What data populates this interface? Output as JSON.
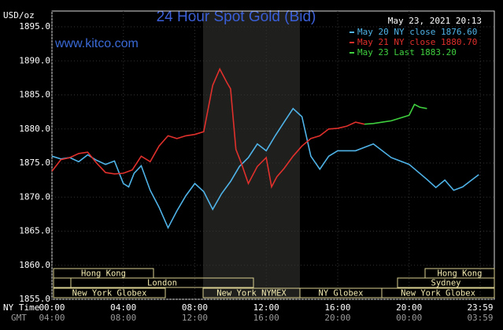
{
  "chart_data": {
    "type": "line",
    "title": "24 Hour Spot Gold (Bid)",
    "source": "www.kitco.com",
    "timestamp": "May 23, 2021 20:13",
    "y_label": "USD/oz",
    "x_label": "NY Time",
    "x2_label": "GMT",
    "legend": "top-right",
    "grid": true,
    "xlim": [
      0,
      23.98
    ],
    "xticks": [
      {
        "value": 0,
        "label": "00:00"
      },
      {
        "value": 4,
        "label": "04:00"
      },
      {
        "value": 8,
        "label": "08:00"
      },
      {
        "value": 12,
        "label": "12:00"
      },
      {
        "value": 16,
        "label": "16:00"
      },
      {
        "value": 20,
        "label": "20:00"
      },
      {
        "value": 23.98,
        "label": "23:59"
      }
    ],
    "gmt_labels": [
      "04:00",
      "08:00",
      "12:00",
      "16:00",
      "20:00",
      "00:00",
      "03:59"
    ],
    "ylim": [
      1855,
      1895
    ],
    "yticks": [
      {
        "value": 1855,
        "label": "1855.0"
      },
      {
        "value": 1860,
        "label": "1860.0"
      },
      {
        "value": 1865,
        "label": "1865.0"
      },
      {
        "value": 1870,
        "label": "1870.0"
      },
      {
        "value": 1875,
        "label": "1875.0"
      },
      {
        "value": 1880,
        "label": "1880.0"
      },
      {
        "value": 1885,
        "label": "1885.0"
      },
      {
        "value": 1890,
        "label": "1890.0"
      },
      {
        "value": 1895,
        "label": "1895.0"
      }
    ],
    "sessions": [
      "Hong Kong",
      "London",
      "New York NYMEX",
      "NY Globex",
      "New York Globex",
      "Hong Kong",
      "Sydney",
      "New York Globex"
    ],
    "series": [
      {
        "name": "May 20 NY close 1876.60",
        "color": "#4fb3e8",
        "x": [
          0,
          0.5,
          1,
          1.5,
          2,
          2.5,
          3,
          3.5,
          4,
          4.3,
          4.6,
          5,
          5.5,
          6,
          6.5,
          7,
          7.5,
          8,
          8.5,
          9,
          9.5,
          10,
          10.5,
          11,
          11.5,
          12,
          12.5,
          13,
          13.5,
          14,
          14.5,
          15,
          15.5,
          16,
          17,
          18,
          19,
          20,
          21,
          21.5,
          22,
          22.5,
          23,
          23.5,
          23.9
        ],
        "values": [
          1876,
          1875.6,
          1875.8,
          1875.2,
          1876.2,
          1875.4,
          1874.8,
          1875.3,
          1872,
          1871.5,
          1873.5,
          1874.6,
          1871,
          1868.5,
          1865.5,
          1868,
          1870.2,
          1872,
          1870.8,
          1868.2,
          1870.5,
          1872.3,
          1874.5,
          1875.8,
          1877.8,
          1876.8,
          1879,
          1881,
          1883,
          1881.8,
          1876,
          1874.1,
          1876,
          1876.8,
          1876.8,
          1877.8,
          1875.8,
          1874.8,
          1872.6,
          1871.4,
          1872.5,
          1871,
          1871.5,
          1872.5,
          1873.3
        ]
      },
      {
        "name": "May 21 NY close 1880.70",
        "color": "#e0302c",
        "x": [
          0,
          0.5,
          1,
          1.5,
          2,
          2.5,
          3,
          3.5,
          4,
          4.5,
          5,
          5.5,
          6,
          6.5,
          7,
          7.5,
          8,
          8.5,
          9,
          9.4,
          9.8,
          10,
          10.3,
          10.6,
          11,
          11.5,
          12,
          12.3,
          12.6,
          13,
          13.5,
          14,
          14.5,
          15,
          15.5,
          16,
          16.5,
          17,
          17.5
        ],
        "values": [
          1873.8,
          1875.5,
          1875.8,
          1876.4,
          1876.6,
          1875,
          1873.6,
          1873.4,
          1873.5,
          1874,
          1876,
          1875.2,
          1877.5,
          1879,
          1878.6,
          1879,
          1879.2,
          1879.6,
          1886.4,
          1888.8,
          1886.8,
          1885.9,
          1877,
          1875,
          1872,
          1874.5,
          1875.8,
          1871.5,
          1873,
          1874.2,
          1876,
          1877.5,
          1878.6,
          1879,
          1880,
          1880.1,
          1880.4,
          1881,
          1880.7
        ]
      },
      {
        "name": "May 23 Last 1883.20",
        "color": "#3fd03f",
        "x": [
          17.5,
          18,
          18.5,
          19,
          19.5,
          20,
          20.3,
          20.6,
          21
        ],
        "values": [
          1880.7,
          1880.8,
          1881,
          1881.2,
          1881.6,
          1882,
          1883.6,
          1883.2,
          1883
        ]
      }
    ]
  }
}
